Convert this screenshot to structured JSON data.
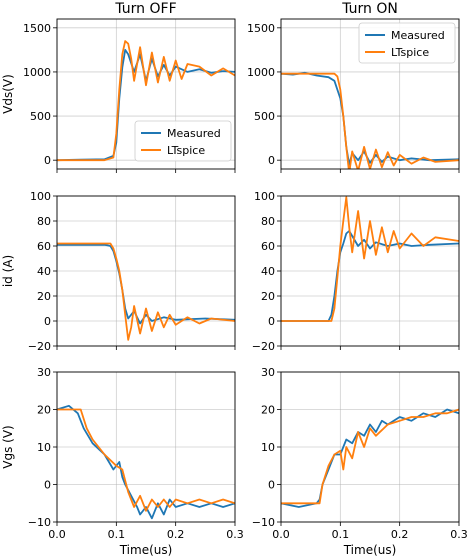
{
  "figure": {
    "column_titles": [
      "Turn OFF",
      "Turn ON"
    ]
  },
  "colors": {
    "measured": "#1f77b4",
    "ltspice": "#ff7f0e"
  },
  "chart_data": [
    {
      "id": "vds-off",
      "type": "line",
      "row": 0,
      "col": 0,
      "ylabel": "Vds(V)",
      "xlabel": "",
      "xlim": [
        0,
        0.3
      ],
      "ylim": [
        -100,
        1600
      ],
      "xticks": [
        0.0,
        0.1,
        0.2,
        0.3
      ],
      "xtick_labels": [
        "",
        "",
        "",
        ""
      ],
      "yticks": [
        0,
        500,
        1000,
        1500
      ],
      "ytick_labels": [
        "0",
        "500",
        "1000",
        "1500"
      ],
      "grid": true,
      "legend": [
        "Measured",
        "LTspice"
      ],
      "legend_position": "lower-right",
      "series": [
        {
          "name": "Measured",
          "color": "#1f77b4",
          "x": [
            0,
            0.04,
            0.08,
            0.095,
            0.1,
            0.105,
            0.11,
            0.115,
            0.12,
            0.13,
            0.14,
            0.15,
            0.16,
            0.17,
            0.18,
            0.19,
            0.2,
            0.22,
            0.24,
            0.26,
            0.28,
            0.3
          ],
          "y": [
            0,
            5,
            10,
            50,
            200,
            700,
            1050,
            1250,
            1200,
            1000,
            1200,
            900,
            1150,
            950,
            1080,
            960,
            1060,
            1000,
            1030,
            990,
            1010,
            1000
          ]
        },
        {
          "name": "LTspice",
          "color": "#ff7f0e",
          "x": [
            0,
            0.08,
            0.095,
            0.1,
            0.105,
            0.11,
            0.115,
            0.12,
            0.125,
            0.13,
            0.14,
            0.15,
            0.16,
            0.17,
            0.18,
            0.19,
            0.2,
            0.21,
            0.22,
            0.24,
            0.26,
            0.28,
            0.3
          ],
          "y": [
            0,
            0,
            30,
            300,
            800,
            1200,
            1350,
            1320,
            1150,
            900,
            1280,
            850,
            1220,
            880,
            1170,
            900,
            1130,
            920,
            1090,
            1060,
            960,
            1040,
            960
          ]
        }
      ]
    },
    {
      "id": "vds-on",
      "type": "line",
      "row": 0,
      "col": 1,
      "ylabel": "",
      "xlabel": "",
      "xlim": [
        0,
        0.3
      ],
      "ylim": [
        -100,
        1600
      ],
      "xticks": [
        0.0,
        0.1,
        0.2,
        0.3
      ],
      "xtick_labels": [
        "",
        "",
        "",
        ""
      ],
      "yticks": [
        0,
        500,
        1000,
        1500
      ],
      "ytick_labels": [
        "0",
        "500",
        "1000",
        "1500"
      ],
      "grid": true,
      "legend": [
        "Measured",
        "LTspice"
      ],
      "legend_position": "upper-right",
      "series": [
        {
          "name": "Measured",
          "color": "#1f77b4",
          "x": [
            0,
            0.02,
            0.04,
            0.06,
            0.08,
            0.09,
            0.1,
            0.105,
            0.11,
            0.115,
            0.12,
            0.13,
            0.14,
            0.15,
            0.16,
            0.17,
            0.18,
            0.2,
            0.22,
            0.25,
            0.3
          ],
          "y": [
            980,
            970,
            990,
            960,
            940,
            900,
            700,
            500,
            150,
            -50,
            80,
            0,
            100,
            -30,
            60,
            -20,
            40,
            0,
            20,
            0,
            10
          ]
        },
        {
          "name": "LTspice",
          "color": "#ff7f0e",
          "x": [
            0,
            0.09,
            0.095,
            0.1,
            0.105,
            0.11,
            0.115,
            0.12,
            0.13,
            0.14,
            0.15,
            0.16,
            0.17,
            0.18,
            0.19,
            0.2,
            0.22,
            0.24,
            0.26,
            0.3
          ],
          "y": [
            980,
            980,
            950,
            800,
            500,
            150,
            -150,
            100,
            -120,
            150,
            -100,
            120,
            -80,
            90,
            -60,
            60,
            -40,
            30,
            -20,
            0
          ]
        }
      ]
    },
    {
      "id": "id-off",
      "type": "line",
      "row": 1,
      "col": 0,
      "ylabel": "id (A)",
      "xlabel": "",
      "xlim": [
        0,
        0.3
      ],
      "ylim": [
        -20,
        100
      ],
      "xticks": [
        0.0,
        0.1,
        0.2,
        0.3
      ],
      "xtick_labels": [
        "",
        "",
        "",
        ""
      ],
      "yticks": [
        -20,
        0,
        20,
        40,
        60,
        80,
        100
      ],
      "ytick_labels": [
        "−20",
        "0",
        "20",
        "40",
        "60",
        "80",
        "100"
      ],
      "grid": true,
      "series": [
        {
          "name": "Measured",
          "color": "#1f77b4",
          "x": [
            0,
            0.04,
            0.08,
            0.09,
            0.095,
            0.1,
            0.105,
            0.11,
            0.115,
            0.12,
            0.13,
            0.14,
            0.15,
            0.16,
            0.18,
            0.2,
            0.25,
            0.3
          ],
          "y": [
            61,
            61,
            61,
            60,
            56,
            48,
            38,
            25,
            10,
            2,
            8,
            -2,
            5,
            0,
            3,
            1,
            2,
            1
          ]
        },
        {
          "name": "LTspice",
          "color": "#ff7f0e",
          "x": [
            0,
            0.09,
            0.095,
            0.1,
            0.105,
            0.11,
            0.115,
            0.12,
            0.125,
            0.13,
            0.14,
            0.15,
            0.16,
            0.17,
            0.18,
            0.19,
            0.2,
            0.22,
            0.24,
            0.26,
            0.3
          ],
          "y": [
            62,
            62,
            58,
            50,
            40,
            25,
            5,
            -15,
            -5,
            12,
            -10,
            10,
            -8,
            7,
            -5,
            5,
            -3,
            3,
            -2,
            2,
            0
          ]
        }
      ]
    },
    {
      "id": "id-on",
      "type": "line",
      "row": 1,
      "col": 1,
      "ylabel": "",
      "xlabel": "",
      "xlim": [
        0,
        0.3
      ],
      "ylim": [
        -20,
        100
      ],
      "xticks": [
        0.0,
        0.1,
        0.2,
        0.3
      ],
      "xtick_labels": [
        "",
        "",
        "",
        ""
      ],
      "yticks": [
        -20,
        0,
        20,
        40,
        60,
        80,
        100
      ],
      "ytick_labels": [
        "−20",
        "0",
        "20",
        "40",
        "60",
        "80",
        "100"
      ],
      "grid": true,
      "series": [
        {
          "name": "Measured",
          "color": "#1f77b4",
          "x": [
            0,
            0.02,
            0.04,
            0.06,
            0.08,
            0.085,
            0.09,
            0.095,
            0.1,
            0.105,
            0.11,
            0.115,
            0.12,
            0.13,
            0.14,
            0.15,
            0.16,
            0.18,
            0.2,
            0.22,
            0.25,
            0.3
          ],
          "y": [
            0,
            0,
            0,
            0,
            0,
            5,
            20,
            40,
            55,
            62,
            70,
            72,
            68,
            60,
            65,
            58,
            63,
            60,
            62,
            60,
            61,
            62
          ]
        },
        {
          "name": "LTspice",
          "color": "#ff7f0e",
          "x": [
            0,
            0.085,
            0.09,
            0.095,
            0.1,
            0.105,
            0.11,
            0.115,
            0.12,
            0.13,
            0.14,
            0.15,
            0.16,
            0.17,
            0.18,
            0.19,
            0.2,
            0.22,
            0.24,
            0.26,
            0.3
          ],
          "y": [
            0,
            0,
            10,
            35,
            60,
            80,
            99,
            75,
            55,
            88,
            50,
            80,
            53,
            75,
            55,
            72,
            58,
            70,
            60,
            67,
            64
          ]
        }
      ]
    },
    {
      "id": "vgs-off",
      "type": "line",
      "row": 2,
      "col": 0,
      "ylabel": "Vgs (V)",
      "xlabel": "Time(us)",
      "xlim": [
        0,
        0.3
      ],
      "ylim": [
        -10,
        30
      ],
      "xticks": [
        0.0,
        0.1,
        0.2,
        0.3
      ],
      "xtick_labels": [
        "0.0",
        "0.1",
        "0.2",
        "0.3"
      ],
      "yticks": [
        -10,
        0,
        10,
        20,
        30
      ],
      "ytick_labels": [
        "−10",
        "0",
        "10",
        "20",
        "30"
      ],
      "grid": true,
      "series": [
        {
          "name": "Measured",
          "color": "#1f77b4",
          "x": [
            0,
            0.02,
            0.035,
            0.045,
            0.06,
            0.08,
            0.095,
            0.105,
            0.11,
            0.115,
            0.125,
            0.135,
            0.14,
            0.15,
            0.16,
            0.17,
            0.18,
            0.19,
            0.2,
            0.22,
            0.24,
            0.26,
            0.28,
            0.3
          ],
          "y": [
            20,
            21,
            19,
            15,
            11,
            8,
            4,
            6,
            2,
            0,
            -3,
            -6,
            -8,
            -6,
            -9,
            -5,
            -8,
            -4,
            -6,
            -5,
            -6,
            -5,
            -6,
            -5
          ]
        },
        {
          "name": "LTspice",
          "color": "#ff7f0e",
          "x": [
            0,
            0.04,
            0.05,
            0.06,
            0.08,
            0.1,
            0.11,
            0.12,
            0.13,
            0.14,
            0.15,
            0.16,
            0.17,
            0.18,
            0.19,
            0.2,
            0.22,
            0.24,
            0.26,
            0.28,
            0.3
          ],
          "y": [
            20,
            20,
            15,
            12,
            8,
            5,
            4,
            -2,
            -6,
            -3,
            -7,
            -4,
            -6,
            -4,
            -6,
            -4,
            -5,
            -4,
            -5,
            -4,
            -5
          ]
        }
      ]
    },
    {
      "id": "vgs-on",
      "type": "line",
      "row": 2,
      "col": 1,
      "ylabel": "",
      "xlabel": "Time(us)",
      "xlim": [
        0,
        0.3
      ],
      "ylim": [
        -10,
        30
      ],
      "xticks": [
        0.0,
        0.1,
        0.2,
        0.3
      ],
      "xtick_labels": [
        "0.0",
        "0.1",
        "0.2",
        "0.3"
      ],
      "yticks": [
        -10,
        0,
        10,
        20,
        30
      ],
      "ytick_labels": [
        "−10",
        "0",
        "10",
        "20",
        "30"
      ],
      "grid": true,
      "series": [
        {
          "name": "Measured",
          "color": "#1f77b4",
          "x": [
            0,
            0.03,
            0.06,
            0.065,
            0.07,
            0.08,
            0.09,
            0.1,
            0.11,
            0.12,
            0.13,
            0.14,
            0.15,
            0.16,
            0.17,
            0.18,
            0.2,
            0.22,
            0.24,
            0.26,
            0.28,
            0.3
          ],
          "y": [
            -5,
            -6,
            -5,
            -4,
            0,
            4,
            8,
            8,
            12,
            11,
            14,
            13,
            16,
            14,
            17,
            16,
            18,
            17,
            19,
            18,
            20,
            19
          ]
        },
        {
          "name": "LTspice",
          "color": "#ff7f0e",
          "x": [
            0,
            0.06,
            0.065,
            0.07,
            0.08,
            0.09,
            0.1,
            0.105,
            0.11,
            0.12,
            0.13,
            0.14,
            0.15,
            0.16,
            0.18,
            0.2,
            0.22,
            0.24,
            0.26,
            0.28,
            0.3
          ],
          "y": [
            -5,
            -5,
            -5,
            0,
            5,
            8,
            9,
            4,
            10,
            7,
            14,
            10,
            15,
            13,
            16,
            17,
            18,
            18,
            19,
            19,
            20
          ]
        }
      ]
    }
  ]
}
